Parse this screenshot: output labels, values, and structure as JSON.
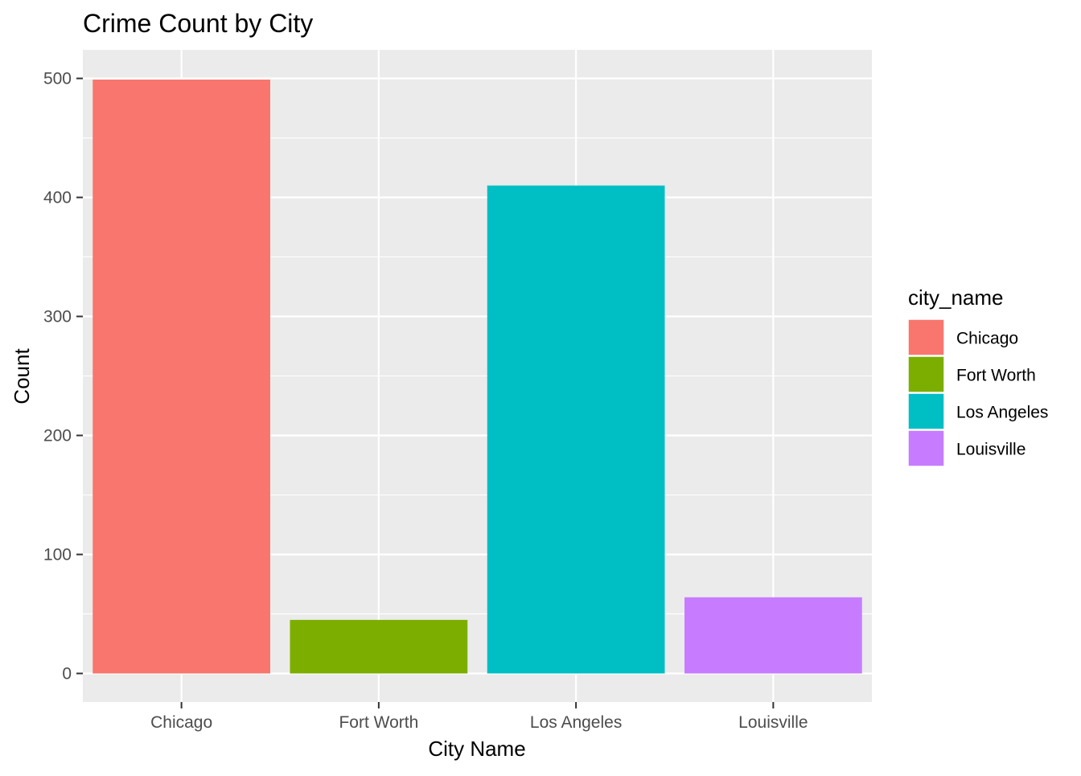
{
  "chart_data": {
    "type": "bar",
    "title": "Crime Count by City",
    "xlabel": "City Name",
    "ylabel": "Count",
    "categories": [
      "Chicago",
      "Fort Worth",
      "Los Angeles",
      "Louisville"
    ],
    "values": [
      499,
      45,
      410,
      64
    ],
    "colors": [
      "#F8766D",
      "#7CAE00",
      "#00BFC4",
      "#C77CFF"
    ],
    "ylim": [
      -24,
      524
    ],
    "yticks": [
      0,
      100,
      200,
      300,
      400,
      500
    ],
    "ytick_labels": [
      "0",
      "100",
      "200",
      "300",
      "400",
      "500"
    ],
    "grid": true,
    "legend": {
      "title": "city_name",
      "position": "right",
      "entries": [
        "Chicago",
        "Fort Worth",
        "Los Angeles",
        "Louisville"
      ]
    },
    "panel_background": "#EBEBEB",
    "gridline_color": "#FFFFFF"
  }
}
